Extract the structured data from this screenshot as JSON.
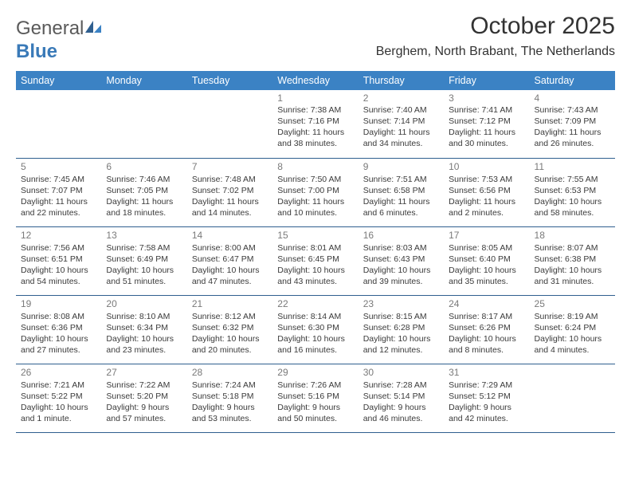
{
  "logo": {
    "text_general": "General",
    "text_blue": "Blue"
  },
  "title": "October 2025",
  "location": "Berghem, North Brabant, The Netherlands",
  "colors": {
    "header_bg": "#3b82c4",
    "header_text": "#ffffff",
    "row_border": "#2f5f8f",
    "daynum": "#7a7a7a",
    "body_text": "#3a3a3a",
    "logo_gray": "#5a5a5a",
    "logo_blue": "#3a7ab8"
  },
  "day_headers": [
    "Sunday",
    "Monday",
    "Tuesday",
    "Wednesday",
    "Thursday",
    "Friday",
    "Saturday"
  ],
  "weeks": [
    [
      null,
      null,
      null,
      {
        "n": "1",
        "sr": "Sunrise: 7:38 AM",
        "ss": "Sunset: 7:16 PM",
        "dl": "Daylight: 11 hours and 38 minutes."
      },
      {
        "n": "2",
        "sr": "Sunrise: 7:40 AM",
        "ss": "Sunset: 7:14 PM",
        "dl": "Daylight: 11 hours and 34 minutes."
      },
      {
        "n": "3",
        "sr": "Sunrise: 7:41 AM",
        "ss": "Sunset: 7:12 PM",
        "dl": "Daylight: 11 hours and 30 minutes."
      },
      {
        "n": "4",
        "sr": "Sunrise: 7:43 AM",
        "ss": "Sunset: 7:09 PM",
        "dl": "Daylight: 11 hours and 26 minutes."
      }
    ],
    [
      {
        "n": "5",
        "sr": "Sunrise: 7:45 AM",
        "ss": "Sunset: 7:07 PM",
        "dl": "Daylight: 11 hours and 22 minutes."
      },
      {
        "n": "6",
        "sr": "Sunrise: 7:46 AM",
        "ss": "Sunset: 7:05 PM",
        "dl": "Daylight: 11 hours and 18 minutes."
      },
      {
        "n": "7",
        "sr": "Sunrise: 7:48 AM",
        "ss": "Sunset: 7:02 PM",
        "dl": "Daylight: 11 hours and 14 minutes."
      },
      {
        "n": "8",
        "sr": "Sunrise: 7:50 AM",
        "ss": "Sunset: 7:00 PM",
        "dl": "Daylight: 11 hours and 10 minutes."
      },
      {
        "n": "9",
        "sr": "Sunrise: 7:51 AM",
        "ss": "Sunset: 6:58 PM",
        "dl": "Daylight: 11 hours and 6 minutes."
      },
      {
        "n": "10",
        "sr": "Sunrise: 7:53 AM",
        "ss": "Sunset: 6:56 PM",
        "dl": "Daylight: 11 hours and 2 minutes."
      },
      {
        "n": "11",
        "sr": "Sunrise: 7:55 AM",
        "ss": "Sunset: 6:53 PM",
        "dl": "Daylight: 10 hours and 58 minutes."
      }
    ],
    [
      {
        "n": "12",
        "sr": "Sunrise: 7:56 AM",
        "ss": "Sunset: 6:51 PM",
        "dl": "Daylight: 10 hours and 54 minutes."
      },
      {
        "n": "13",
        "sr": "Sunrise: 7:58 AM",
        "ss": "Sunset: 6:49 PM",
        "dl": "Daylight: 10 hours and 51 minutes."
      },
      {
        "n": "14",
        "sr": "Sunrise: 8:00 AM",
        "ss": "Sunset: 6:47 PM",
        "dl": "Daylight: 10 hours and 47 minutes."
      },
      {
        "n": "15",
        "sr": "Sunrise: 8:01 AM",
        "ss": "Sunset: 6:45 PM",
        "dl": "Daylight: 10 hours and 43 minutes."
      },
      {
        "n": "16",
        "sr": "Sunrise: 8:03 AM",
        "ss": "Sunset: 6:43 PM",
        "dl": "Daylight: 10 hours and 39 minutes."
      },
      {
        "n": "17",
        "sr": "Sunrise: 8:05 AM",
        "ss": "Sunset: 6:40 PM",
        "dl": "Daylight: 10 hours and 35 minutes."
      },
      {
        "n": "18",
        "sr": "Sunrise: 8:07 AM",
        "ss": "Sunset: 6:38 PM",
        "dl": "Daylight: 10 hours and 31 minutes."
      }
    ],
    [
      {
        "n": "19",
        "sr": "Sunrise: 8:08 AM",
        "ss": "Sunset: 6:36 PM",
        "dl": "Daylight: 10 hours and 27 minutes."
      },
      {
        "n": "20",
        "sr": "Sunrise: 8:10 AM",
        "ss": "Sunset: 6:34 PM",
        "dl": "Daylight: 10 hours and 23 minutes."
      },
      {
        "n": "21",
        "sr": "Sunrise: 8:12 AM",
        "ss": "Sunset: 6:32 PM",
        "dl": "Daylight: 10 hours and 20 minutes."
      },
      {
        "n": "22",
        "sr": "Sunrise: 8:14 AM",
        "ss": "Sunset: 6:30 PM",
        "dl": "Daylight: 10 hours and 16 minutes."
      },
      {
        "n": "23",
        "sr": "Sunrise: 8:15 AM",
        "ss": "Sunset: 6:28 PM",
        "dl": "Daylight: 10 hours and 12 minutes."
      },
      {
        "n": "24",
        "sr": "Sunrise: 8:17 AM",
        "ss": "Sunset: 6:26 PM",
        "dl": "Daylight: 10 hours and 8 minutes."
      },
      {
        "n": "25",
        "sr": "Sunrise: 8:19 AM",
        "ss": "Sunset: 6:24 PM",
        "dl": "Daylight: 10 hours and 4 minutes."
      }
    ],
    [
      {
        "n": "26",
        "sr": "Sunrise: 7:21 AM",
        "ss": "Sunset: 5:22 PM",
        "dl": "Daylight: 10 hours and 1 minute."
      },
      {
        "n": "27",
        "sr": "Sunrise: 7:22 AM",
        "ss": "Sunset: 5:20 PM",
        "dl": "Daylight: 9 hours and 57 minutes."
      },
      {
        "n": "28",
        "sr": "Sunrise: 7:24 AM",
        "ss": "Sunset: 5:18 PM",
        "dl": "Daylight: 9 hours and 53 minutes."
      },
      {
        "n": "29",
        "sr": "Sunrise: 7:26 AM",
        "ss": "Sunset: 5:16 PM",
        "dl": "Daylight: 9 hours and 50 minutes."
      },
      {
        "n": "30",
        "sr": "Sunrise: 7:28 AM",
        "ss": "Sunset: 5:14 PM",
        "dl": "Daylight: 9 hours and 46 minutes."
      },
      {
        "n": "31",
        "sr": "Sunrise: 7:29 AM",
        "ss": "Sunset: 5:12 PM",
        "dl": "Daylight: 9 hours and 42 minutes."
      },
      null
    ]
  ]
}
